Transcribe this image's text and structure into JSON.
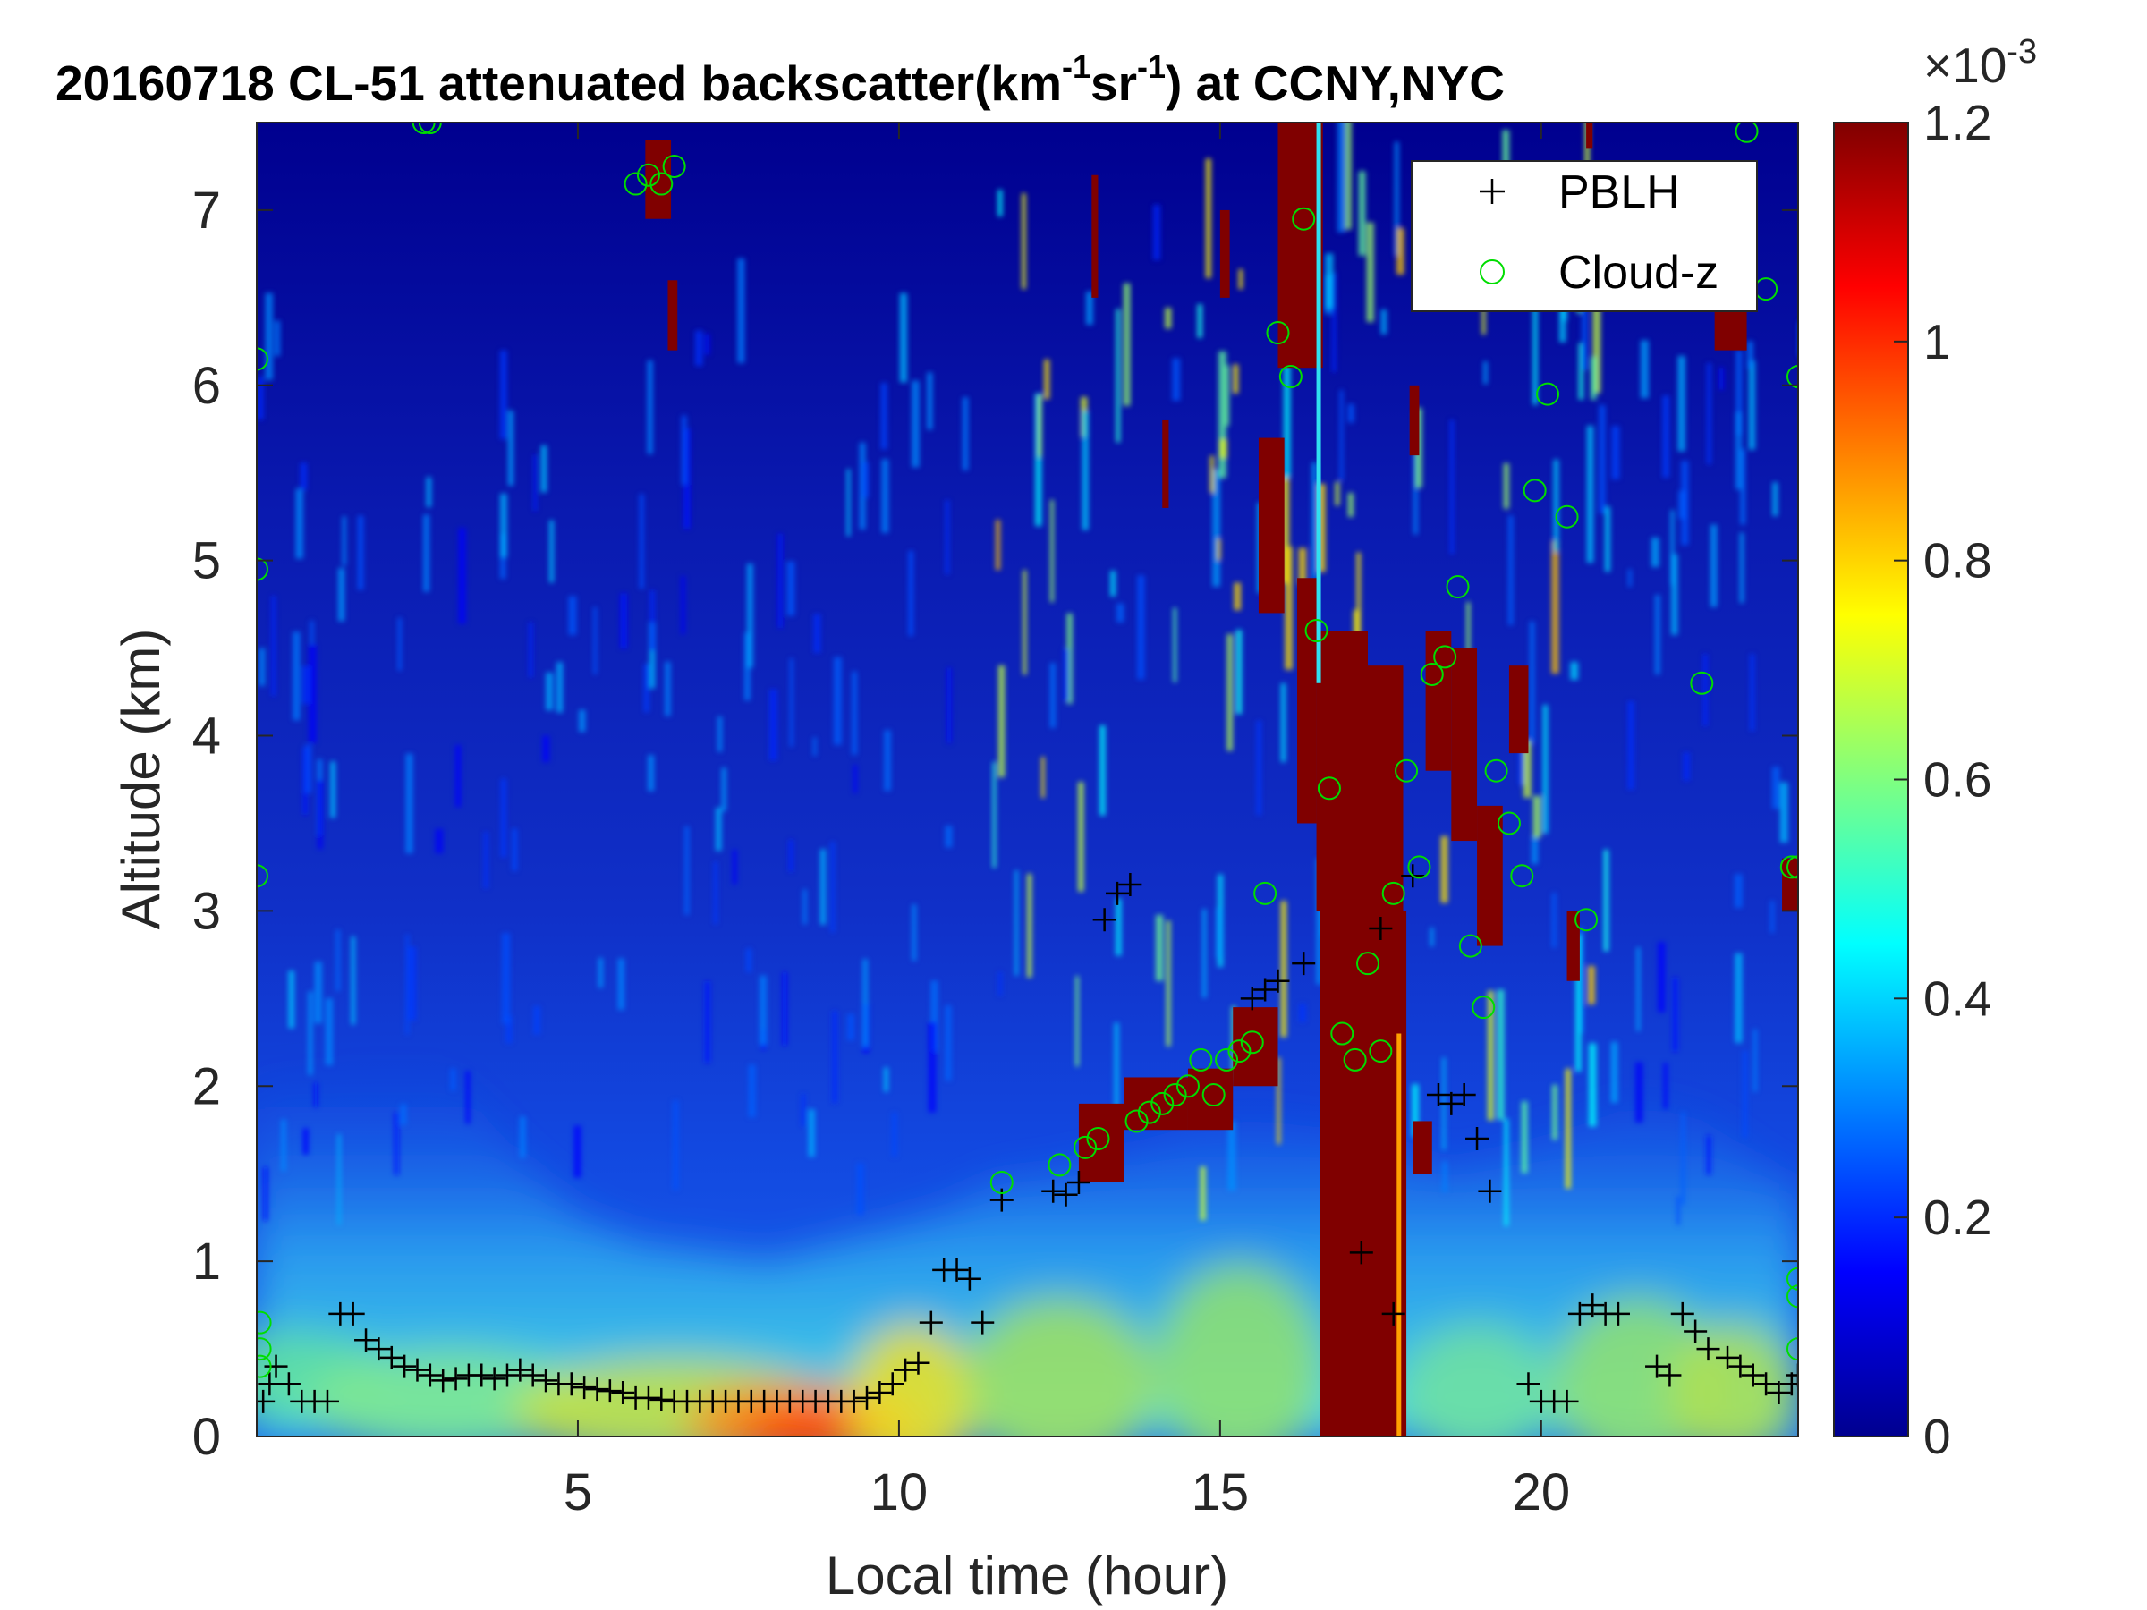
{
  "chart_data": {
    "type": "heatmap",
    "title": {
      "prefix": "20160718  CL-51 attenuated backscatter(km",
      "sup1": "-1",
      "mid": "sr",
      "sup2": "-1",
      "suffix": ") at CCNY,NYC"
    },
    "xlabel": "Local time (hour)",
    "ylabel": "Altitude (km)",
    "xlim": [
      0,
      24
    ],
    "ylim": [
      0,
      7.5
    ],
    "xticks": [
      5,
      10,
      15,
      20
    ],
    "yticks": [
      0,
      1,
      2,
      3,
      4,
      5,
      6,
      7
    ],
    "colorbar": {
      "colormap": "jet",
      "range": [
        0,
        0.0012
      ],
      "ticks": [
        0,
        0.2,
        0.4,
        0.6,
        0.8,
        1,
        1.2
      ],
      "exponent_label": "×10",
      "exponent": "-3"
    },
    "grid": false,
    "legend_position": "top-right",
    "legend": [
      {
        "name": "PBLH",
        "marker": "+",
        "color": "#000000"
      },
      {
        "name": "Cloud-z",
        "marker": "o",
        "color": "#00dd00"
      }
    ],
    "pblh": {
      "x": [
        0.1,
        0.2,
        0.3,
        0.5,
        0.7,
        0.9,
        1.1,
        1.3,
        1.5,
        1.7,
        1.9,
        2.1,
        2.3,
        2.5,
        2.7,
        2.9,
        3.1,
        3.3,
        3.5,
        3.7,
        3.9,
        4.1,
        4.3,
        4.5,
        4.7,
        4.9,
        5.1,
        5.3,
        5.5,
        5.7,
        5.9,
        6.1,
        6.3,
        6.5,
        6.7,
        6.9,
        7.1,
        7.3,
        7.5,
        7.7,
        7.9,
        8.1,
        8.3,
        8.5,
        8.7,
        8.9,
        9.1,
        9.3,
        9.5,
        9.7,
        9.9,
        10.1,
        10.3,
        10.5,
        10.7,
        10.9,
        11.1,
        11.3,
        11.6,
        12.4,
        12.6,
        12.8,
        13.2,
        13.4,
        13.6,
        15.5,
        15.7,
        15.9,
        16.3,
        17.2,
        17.5,
        17.7,
        18.0,
        18.4,
        18.6,
        18.8,
        19.0,
        19.2,
        19.8,
        20.0,
        20.2,
        20.4,
        20.6,
        20.8,
        21.0,
        21.2,
        21.8,
        22.0,
        22.2,
        22.4,
        22.6,
        22.9,
        23.1,
        23.3,
        23.5,
        23.7,
        23.9,
        24.0
      ],
      "y": [
        0.2,
        0.3,
        0.4,
        0.3,
        0.2,
        0.2,
        0.2,
        0.7,
        0.7,
        0.55,
        0.5,
        0.45,
        0.4,
        0.38,
        0.35,
        0.32,
        0.33,
        0.35,
        0.35,
        0.33,
        0.35,
        0.38,
        0.35,
        0.32,
        0.3,
        0.3,
        0.28,
        0.27,
        0.26,
        0.25,
        0.22,
        0.22,
        0.21,
        0.2,
        0.2,
        0.2,
        0.2,
        0.2,
        0.2,
        0.2,
        0.2,
        0.2,
        0.2,
        0.2,
        0.2,
        0.2,
        0.2,
        0.2,
        0.22,
        0.25,
        0.3,
        0.38,
        0.42,
        0.65,
        0.95,
        0.95,
        0.9,
        0.65,
        1.35,
        1.4,
        1.38,
        1.45,
        2.95,
        3.1,
        3.15,
        2.5,
        2.55,
        2.6,
        2.7,
        1.05,
        2.9,
        0.7,
        3.2,
        1.95,
        1.9,
        1.95,
        1.7,
        1.4,
        0.3,
        0.2,
        0.2,
        0.2,
        0.7,
        0.75,
        0.7,
        0.7,
        0.4,
        0.35,
        0.7,
        0.6,
        0.5,
        0.45,
        0.4,
        0.35,
        0.3,
        0.25,
        0.3,
        0.35
      ]
    },
    "cloud_z": {
      "x": [
        0.0,
        0.0,
        0.0,
        0.05,
        0.05,
        0.05,
        2.6,
        2.7,
        5.9,
        6.1,
        6.3,
        6.5,
        11.6,
        12.5,
        12.9,
        13.1,
        13.7,
        13.9,
        14.1,
        14.3,
        14.5,
        14.7,
        14.9,
        15.1,
        15.3,
        15.5,
        15.7,
        15.9,
        16.1,
        16.3,
        16.5,
        16.7,
        16.9,
        17.1,
        17.3,
        17.5,
        17.7,
        17.9,
        18.1,
        18.3,
        18.5,
        18.7,
        18.9,
        19.1,
        19.3,
        19.5,
        19.7,
        19.9,
        20.1,
        20.4,
        20.7,
        22.5,
        23.2,
        23.5,
        23.9,
        24.0,
        24.0,
        24.0,
        24.0,
        24.0
      ],
      "y": [
        6.15,
        4.95,
        3.2,
        0.65,
        0.5,
        0.4,
        7.5,
        7.5,
        7.15,
        7.2,
        7.15,
        7.25,
        1.45,
        1.55,
        1.65,
        1.7,
        1.8,
        1.85,
        1.9,
        1.95,
        2.0,
        2.15,
        1.95,
        2.15,
        2.2,
        2.25,
        3.1,
        6.3,
        6.05,
        6.95,
        4.6,
        3.7,
        2.3,
        2.15,
        2.7,
        2.2,
        3.1,
        3.8,
        3.25,
        4.35,
        4.45,
        4.85,
        2.8,
        2.45,
        3.8,
        3.5,
        3.2,
        5.4,
        5.95,
        5.25,
        2.95,
        4.3,
        7.45,
        6.55,
        3.25,
        3.25,
        6.05,
        0.9,
        0.8,
        0.5
      ]
    }
  }
}
